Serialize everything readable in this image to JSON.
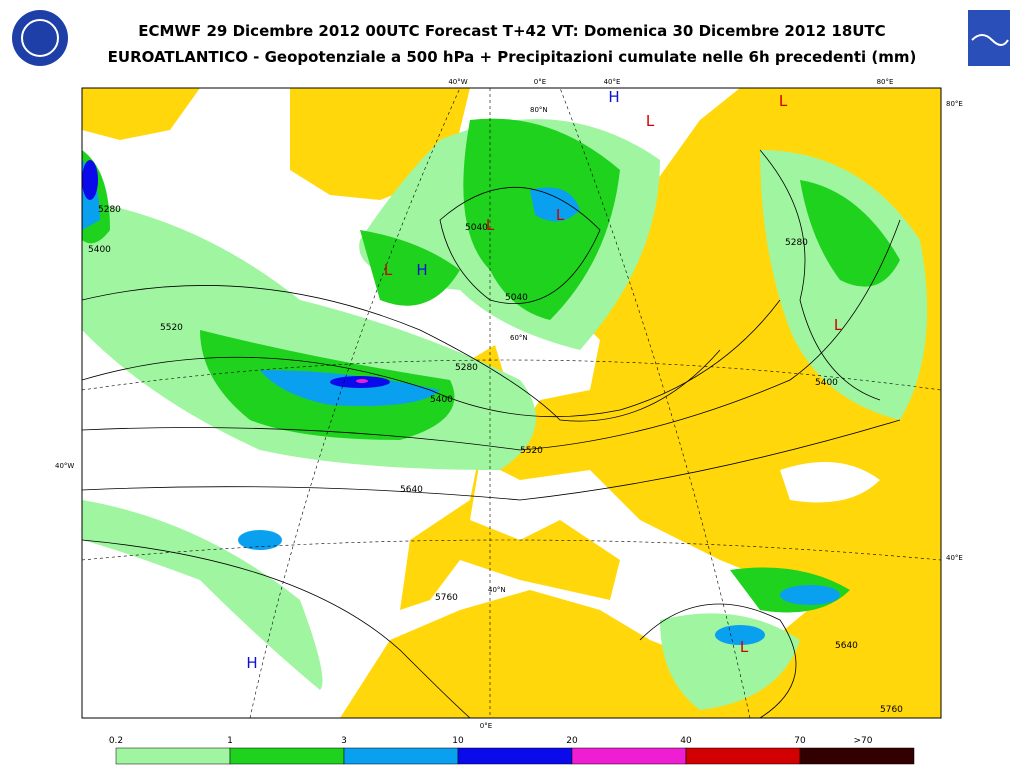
{
  "header": {
    "title": "ECMWF 29 Dicembre 2012 00UTC Forecast T+42 VT: Domenica 30 Dicembre 2012 18UTC",
    "subtitle": "EUROATLANTICO - Geopotenziale a 500 hPa + Precipitazioni cumulate nelle 6h precedenti (mm)"
  },
  "grid_labels": [
    "40°W",
    "0°E",
    "40°E",
    "80°E",
    "80°E",
    "40°E",
    "40°W",
    "0°E",
    "80°N",
    "60°N",
    "40°N"
  ],
  "contour_labels": [
    "5280",
    "5400",
    "5520",
    "5040",
    "5040",
    "5280",
    "5400",
    "5520",
    "5640",
    "5760",
    "5280",
    "5400",
    "5640",
    "5760"
  ],
  "centers": [
    "H",
    "H",
    "H",
    "L",
    "L",
    "L",
    "L",
    "L",
    "L",
    "L"
  ],
  "legend": {
    "labels": [
      "0.2",
      "1",
      "3",
      "10",
      "20",
      "40",
      "70",
      ">70"
    ],
    "colors": [
      "#a0f5a0",
      "#1ed21e",
      "#0aa0f0",
      "#0a0aeb",
      "#f01ed2",
      "#d20000",
      "#320000"
    ]
  }
}
